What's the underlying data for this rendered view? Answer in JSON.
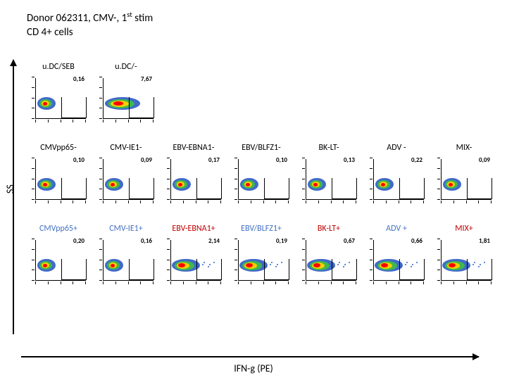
{
  "header": {
    "line1_pre": "Donor 062311, CMV-, 1",
    "line1_sup": "st",
    "line1_post": " stim",
    "line2": "CD 4+ cells"
  },
  "axes": {
    "y_label": "SS",
    "x_label": "IFN-g (PE)"
  },
  "rows": [
    {
      "cells": [
        {
          "label": "u.DC/SEB",
          "value": "0,16",
          "cluster": "tight"
        },
        {
          "label": "u.DC/-",
          "value": "7,67",
          "cluster": "wide"
        },
        null,
        null,
        null,
        null,
        null
      ]
    },
    {
      "cells": [
        {
          "label": "CMVpp65-",
          "value": "0,10",
          "cluster": "tight"
        },
        {
          "label": "CMV-IE1-",
          "value": "0,09",
          "cluster": "tight"
        },
        {
          "label": "EBV-EBNA1-",
          "value": "0,17",
          "cluster": "tight"
        },
        {
          "label": "EBV/BLFZ1-",
          "value": "0,10",
          "cluster": "tight"
        },
        {
          "label": "BK-LT-",
          "value": "0,13",
          "cluster": "tight"
        },
        {
          "label": "ADV -",
          "value": "0,22",
          "cluster": "tight"
        },
        {
          "label": "MIX-",
          "value": "0,09",
          "cluster": "tight"
        }
      ]
    },
    {
      "cells": [
        {
          "label": "CMVpp65+",
          "value": "0,20",
          "cluster": "tight",
          "label_color": "blue"
        },
        {
          "label": "CMV-IE1+",
          "value": "0,16",
          "cluster": "tight",
          "label_color": "blue"
        },
        {
          "label": "EBV-EBNA1+",
          "value": "2,14",
          "cluster": "spread",
          "label_color": "red"
        },
        {
          "label": "EBV/BLFZ1+",
          "value": "0,19",
          "cluster": "spread",
          "label_color": "blue"
        },
        {
          "label": "BK-LT+",
          "value": "0,67",
          "cluster": "spread",
          "label_color": "red"
        },
        {
          "label": "ADV +",
          "value": "0,66",
          "cluster": "spread",
          "label_color": "blue"
        },
        {
          "label": "MIX+",
          "value": "1,81",
          "cluster": "spread",
          "label_color": "red"
        }
      ]
    }
  ],
  "palette": {
    "core": "#ff0000",
    "mid": "#ffd000",
    "mid2": "#40c040",
    "outer": "#2050c0"
  }
}
